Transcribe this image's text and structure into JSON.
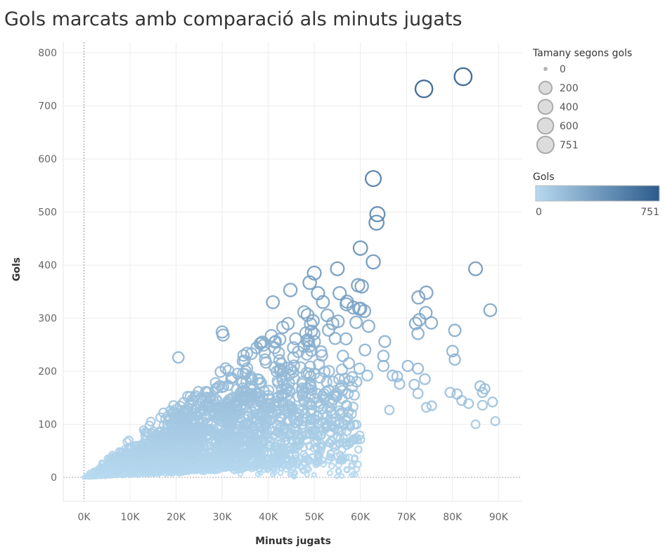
{
  "chart_data": {
    "type": "scatter",
    "title": "Gols marcats amb comparació als minuts jugats",
    "xlabel": "Minuts jugats",
    "ylabel": "Gols",
    "xlim": [
      -4500,
      95000
    ],
    "ylim": [
      -45,
      820
    ],
    "x_ticks": [
      0,
      10000,
      20000,
      30000,
      40000,
      50000,
      60000,
      70000,
      80000,
      90000
    ],
    "x_tick_labels": [
      "0K",
      "10K",
      "20K",
      "30K",
      "40K",
      "50K",
      "60K",
      "70K",
      "80K",
      "90K"
    ],
    "y_ticks": [
      0,
      100,
      200,
      300,
      400,
      500,
      600,
      700,
      800
    ],
    "y_tick_labels": [
      "0",
      "100",
      "200",
      "300",
      "400",
      "500",
      "600",
      "700",
      "800"
    ],
    "grid": true,
    "color": {
      "title": "Gols",
      "min": 0,
      "max": 751,
      "min_label": "0",
      "max_label": "751",
      "color_low": "#b8daf0",
      "color_high": "#2c5b8c"
    },
    "size_legend": {
      "title": "Tamany segons gols",
      "entries": [
        {
          "label": "0",
          "value": 0
        },
        {
          "label": "200",
          "value": 200
        },
        {
          "label": "400",
          "value": 400
        },
        {
          "label": "600",
          "value": 600
        },
        {
          "label": "751",
          "value": 751
        }
      ]
    },
    "highlighted_points": [
      {
        "x": 82300,
        "y": 755
      },
      {
        "x": 73800,
        "y": 732
      },
      {
        "x": 62800,
        "y": 563
      },
      {
        "x": 63700,
        "y": 496
      },
      {
        "x": 63500,
        "y": 480
      },
      {
        "x": 60000,
        "y": 432
      },
      {
        "x": 62800,
        "y": 406
      },
      {
        "x": 85000,
        "y": 393
      },
      {
        "x": 55000,
        "y": 393
      },
      {
        "x": 50000,
        "y": 385
      },
      {
        "x": 49000,
        "y": 367
      },
      {
        "x": 59500,
        "y": 362
      },
      {
        "x": 60300,
        "y": 360
      },
      {
        "x": 44800,
        "y": 353
      },
      {
        "x": 55500,
        "y": 347
      },
      {
        "x": 74300,
        "y": 348
      },
      {
        "x": 72600,
        "y": 339
      },
      {
        "x": 50800,
        "y": 347
      },
      {
        "x": 41000,
        "y": 330
      },
      {
        "x": 88200,
        "y": 315
      },
      {
        "x": 74200,
        "y": 310
      },
      {
        "x": 60000,
        "y": 318
      },
      {
        "x": 58500,
        "y": 320
      },
      {
        "x": 57000,
        "y": 326
      },
      {
        "x": 72800,
        "y": 297
      },
      {
        "x": 75400,
        "y": 291
      },
      {
        "x": 72000,
        "y": 290
      },
      {
        "x": 54000,
        "y": 290
      },
      {
        "x": 61800,
        "y": 285
      },
      {
        "x": 80500,
        "y": 277
      },
      {
        "x": 72500,
        "y": 271
      },
      {
        "x": 30000,
        "y": 274
      },
      {
        "x": 30200,
        "y": 268
      },
      {
        "x": 65300,
        "y": 256
      },
      {
        "x": 61000,
        "y": 240
      },
      {
        "x": 80000,
        "y": 238
      },
      {
        "x": 65000,
        "y": 229
      },
      {
        "x": 80500,
        "y": 222
      },
      {
        "x": 20500,
        "y": 226
      },
      {
        "x": 57500,
        "y": 215
      },
      {
        "x": 70300,
        "y": 210
      },
      {
        "x": 65000,
        "y": 210
      },
      {
        "x": 59800,
        "y": 205
      },
      {
        "x": 56000,
        "y": 203
      },
      {
        "x": 72500,
        "y": 205
      },
      {
        "x": 61500,
        "y": 192
      },
      {
        "x": 67000,
        "y": 192
      },
      {
        "x": 68000,
        "y": 190
      },
      {
        "x": 74000,
        "y": 185
      },
      {
        "x": 57600,
        "y": 182
      },
      {
        "x": 59200,
        "y": 180
      },
      {
        "x": 71700,
        "y": 175
      },
      {
        "x": 86000,
        "y": 172
      },
      {
        "x": 87000,
        "y": 167
      },
      {
        "x": 56000,
        "y": 173
      },
      {
        "x": 68500,
        "y": 176
      },
      {
        "x": 79500,
        "y": 160
      },
      {
        "x": 81000,
        "y": 157
      },
      {
        "x": 86500,
        "y": 160
      },
      {
        "x": 72500,
        "y": 158
      },
      {
        "x": 82000,
        "y": 145
      },
      {
        "x": 83500,
        "y": 139
      },
      {
        "x": 88700,
        "y": 142
      },
      {
        "x": 86500,
        "y": 136
      },
      {
        "x": 75500,
        "y": 135
      },
      {
        "x": 74300,
        "y": 132
      },
      {
        "x": 66300,
        "y": 127
      },
      {
        "x": 89300,
        "y": 106
      },
      {
        "x": 85000,
        "y": 100
      }
    ]
  },
  "sample_seed": 7
}
